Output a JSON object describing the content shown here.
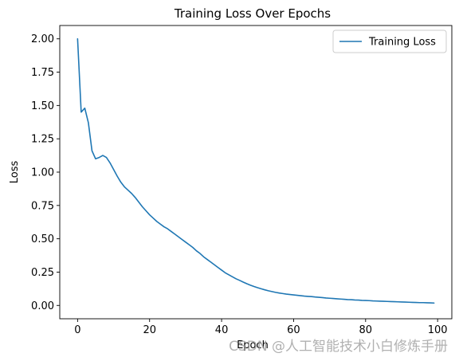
{
  "chart_data": {
    "type": "line",
    "title": "Training Loss Over Epochs",
    "xlabel": "Epoch",
    "ylabel": "Loss",
    "xlim": [
      -4.95,
      103.95
    ],
    "ylim": [
      -0.1,
      2.1
    ],
    "xticks": [
      0,
      20,
      40,
      60,
      80,
      100
    ],
    "xtick_labels": [
      "0",
      "20",
      "40",
      "60",
      "80",
      "100"
    ],
    "yticks": [
      0,
      0.25,
      0.5,
      0.75,
      1.0,
      1.25,
      1.5,
      1.75,
      2.0
    ],
    "ytick_labels": [
      "0.00",
      "0.25",
      "0.50",
      "0.75",
      "1.00",
      "1.25",
      "1.50",
      "1.75",
      "2.00"
    ],
    "grid": false,
    "legend_position": "top-right",
    "series": [
      {
        "name": "Training Loss",
        "color": "#1f77b4",
        "x": [
          0,
          1,
          2,
          3,
          4,
          5,
          6,
          7,
          8,
          9,
          10,
          11,
          12,
          13,
          14,
          15,
          16,
          17,
          18,
          19,
          20,
          21,
          22,
          23,
          24,
          25,
          26,
          27,
          28,
          29,
          30,
          31,
          32,
          33,
          34,
          35,
          36,
          37,
          38,
          39,
          40,
          41,
          42,
          43,
          44,
          45,
          46,
          47,
          48,
          49,
          50,
          51,
          52,
          53,
          54,
          55,
          56,
          57,
          58,
          59,
          60,
          61,
          62,
          63,
          64,
          65,
          66,
          67,
          68,
          69,
          70,
          71,
          72,
          73,
          74,
          75,
          76,
          77,
          78,
          79,
          80,
          81,
          82,
          83,
          84,
          85,
          86,
          87,
          88,
          89,
          90,
          91,
          92,
          93,
          94,
          95,
          96,
          97,
          98,
          99
        ],
        "y": [
          2.0,
          1.45,
          1.48,
          1.37,
          1.16,
          1.1,
          1.11,
          1.125,
          1.11,
          1.07,
          1.02,
          0.97,
          0.925,
          0.89,
          0.865,
          0.84,
          0.81,
          0.775,
          0.74,
          0.71,
          0.68,
          0.655,
          0.63,
          0.61,
          0.59,
          0.575,
          0.555,
          0.535,
          0.515,
          0.495,
          0.475,
          0.455,
          0.435,
          0.41,
          0.39,
          0.365,
          0.345,
          0.325,
          0.305,
          0.285,
          0.265,
          0.245,
          0.23,
          0.215,
          0.2,
          0.188,
          0.175,
          0.163,
          0.152,
          0.142,
          0.133,
          0.125,
          0.117,
          0.11,
          0.104,
          0.098,
          0.093,
          0.089,
          0.085,
          0.082,
          0.079,
          0.076,
          0.073,
          0.07,
          0.068,
          0.066,
          0.063,
          0.061,
          0.059,
          0.056,
          0.054,
          0.052,
          0.05,
          0.048,
          0.046,
          0.044,
          0.043,
          0.041,
          0.04,
          0.038,
          0.037,
          0.036,
          0.034,
          0.033,
          0.032,
          0.031,
          0.03,
          0.029,
          0.028,
          0.027,
          0.026,
          0.025,
          0.024,
          0.023,
          0.022,
          0.021,
          0.021,
          0.02,
          0.019,
          0.018
        ]
      }
    ]
  },
  "watermark": "CSDN @人工智能技术小白修炼手册"
}
